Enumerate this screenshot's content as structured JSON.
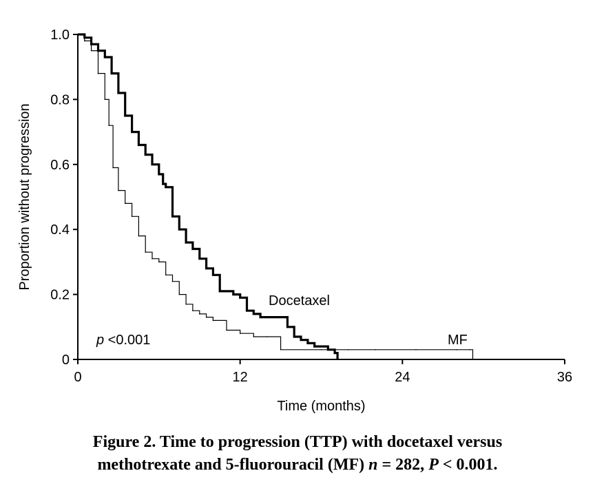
{
  "chart_data": {
    "type": "line",
    "title": "",
    "xlabel": "Time (months)",
    "ylabel": "Proportion without progression",
    "xlim": [
      0,
      36
    ],
    "ylim": [
      0,
      1.0
    ],
    "xticks": [
      0,
      12,
      24,
      36
    ],
    "yticks": [
      0,
      0.2,
      0.4,
      0.6,
      0.8,
      1.0
    ],
    "xtick_labels": [
      "0",
      "12",
      "24",
      "36"
    ],
    "ytick_labels": [
      "0",
      "0.2",
      "0.4",
      "0.6",
      "0.8",
      "1.0"
    ],
    "grid": false,
    "annotation": "p <0.001",
    "series": [
      {
        "name": "Docetaxel",
        "color": "#000000",
        "style": "thick step",
        "x": [
          0,
          0.5,
          1,
          1.5,
          2,
          2.5,
          3,
          3.5,
          4,
          4.5,
          5,
          5.5,
          6,
          6.3,
          6.5,
          7,
          7.5,
          8,
          8.5,
          9,
          9.5,
          10,
          10.5,
          11,
          11.5,
          12,
          12.5,
          13,
          13.5,
          14,
          14.5,
          15,
          15.5,
          16,
          16.5,
          17,
          17.5,
          18,
          18.5,
          19,
          19.2
        ],
        "y": [
          1.0,
          0.99,
          0.97,
          0.95,
          0.93,
          0.88,
          0.82,
          0.75,
          0.7,
          0.66,
          0.63,
          0.6,
          0.57,
          0.54,
          0.53,
          0.44,
          0.4,
          0.36,
          0.34,
          0.31,
          0.28,
          0.26,
          0.21,
          0.21,
          0.2,
          0.19,
          0.15,
          0.14,
          0.13,
          0.13,
          0.13,
          0.13,
          0.1,
          0.07,
          0.06,
          0.05,
          0.04,
          0.04,
          0.03,
          0.02,
          0.0
        ]
      },
      {
        "name": "MF",
        "color": "#000000",
        "style": "thin step",
        "x": [
          0,
          0.5,
          1,
          1.5,
          2,
          2.3,
          2.6,
          3,
          3.5,
          4,
          4.5,
          5,
          5.5,
          6,
          6.5,
          7,
          7.5,
          8,
          8.5,
          9,
          9.5,
          10,
          11,
          12,
          13,
          14,
          15,
          18,
          20,
          22,
          25,
          28,
          29,
          29.2
        ],
        "y": [
          1.0,
          0.98,
          0.95,
          0.88,
          0.8,
          0.72,
          0.59,
          0.52,
          0.48,
          0.44,
          0.38,
          0.33,
          0.31,
          0.3,
          0.26,
          0.24,
          0.2,
          0.17,
          0.15,
          0.14,
          0.13,
          0.12,
          0.09,
          0.08,
          0.07,
          0.07,
          0.03,
          0.03,
          0.03,
          0.03,
          0.03,
          0.03,
          0.03,
          0.0
        ]
      }
    ]
  },
  "caption": {
    "line1": "Figure 2. Time to progression (TTP) with docetaxel versus",
    "line2_a": "methotrexate and 5-fluorouracil (MF) ",
    "line2_n": "n",
    "line2_b": " = 282, ",
    "line2_p": "P",
    "line2_c": " < 0.001."
  }
}
